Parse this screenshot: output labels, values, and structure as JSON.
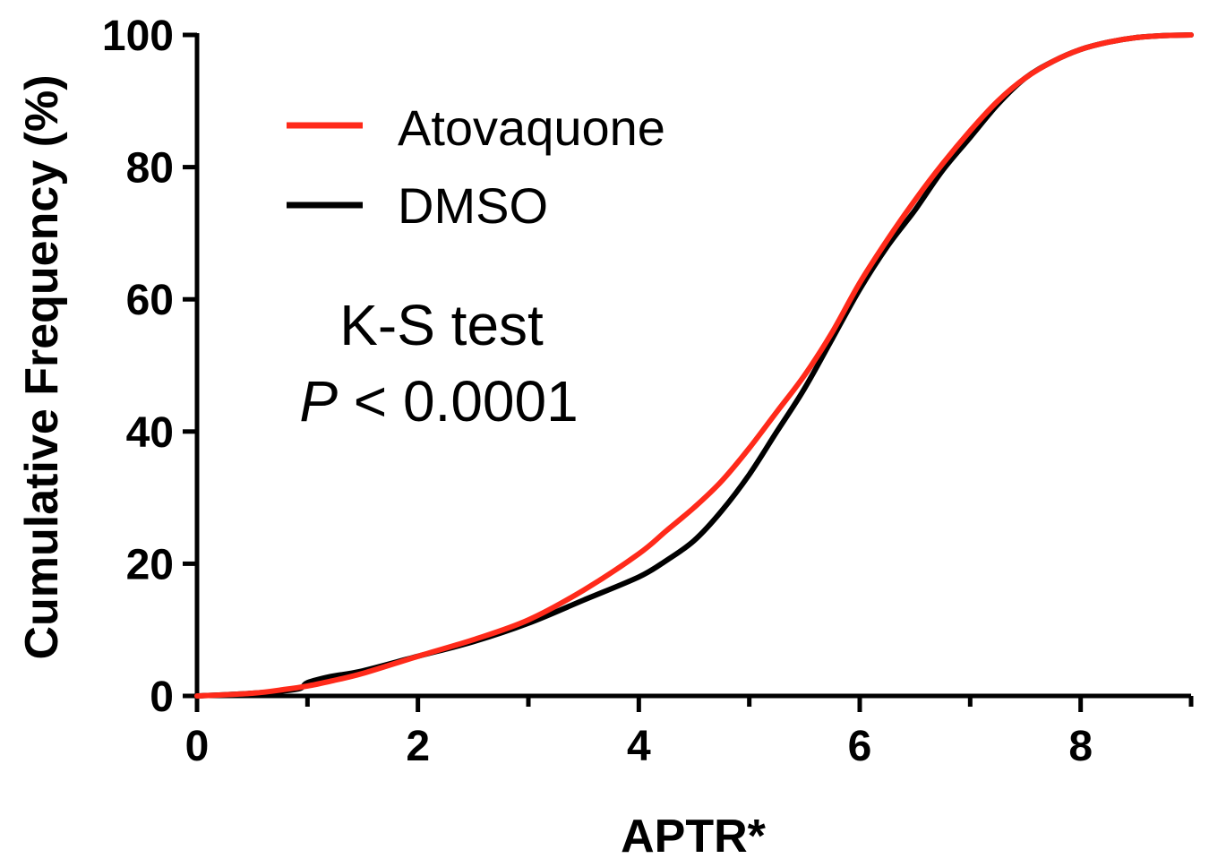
{
  "chart_data": {
    "type": "line",
    "title": "",
    "xlabel": "APTR*",
    "ylabel": "Cumulative Frequency (%)",
    "xlim": [
      0,
      9
    ],
    "ylim": [
      0,
      100
    ],
    "x_ticks": [
      "0",
      "2",
      "4",
      "6",
      "8"
    ],
    "y_ticks": [
      "0",
      "20",
      "40",
      "60",
      "80",
      "100"
    ],
    "grid": false,
    "legend_position": "top-left",
    "series": [
      {
        "name": "Atovaquone",
        "color": "#ff2a1a",
        "x": [
          0,
          0.5,
          0.8,
          1.0,
          1.2,
          1.5,
          2.0,
          2.5,
          3.0,
          3.5,
          4.0,
          4.25,
          4.5,
          4.75,
          5.0,
          5.25,
          5.5,
          5.75,
          6.0,
          6.25,
          6.5,
          6.75,
          7.0,
          7.25,
          7.5,
          7.75,
          8.0,
          8.25,
          8.5,
          8.75,
          9.0
        ],
        "y": [
          0,
          0.4,
          1.0,
          1.5,
          2.2,
          3.4,
          6.0,
          8.5,
          11.5,
          16.0,
          21.5,
          25.0,
          28.5,
          32.5,
          37.5,
          43.0,
          48.5,
          55.0,
          62.5,
          69.0,
          75.0,
          80.5,
          85.5,
          90.0,
          93.5,
          96.0,
          97.8,
          98.9,
          99.6,
          99.9,
          100
        ]
      },
      {
        "name": "DMSO",
        "color": "#000000",
        "x": [
          0,
          0.5,
          0.9,
          1.0,
          1.2,
          1.5,
          2.0,
          2.5,
          3.0,
          3.5,
          4.0,
          4.25,
          4.5,
          4.75,
          5.0,
          5.25,
          5.5,
          5.75,
          6.0,
          6.25,
          6.5,
          6.75,
          7.0,
          7.25,
          7.5,
          7.75,
          8.0,
          8.25,
          8.5,
          8.75,
          9.0
        ],
        "y": [
          0,
          0.4,
          1.0,
          2.0,
          2.9,
          3.8,
          6.0,
          8.2,
          11.0,
          14.5,
          18.0,
          20.5,
          23.5,
          28.0,
          33.5,
          40.0,
          46.5,
          54.0,
          61.5,
          68.0,
          73.5,
          79.5,
          84.5,
          89.5,
          93.5,
          96.0,
          97.8,
          98.9,
          99.6,
          99.9,
          100
        ]
      }
    ],
    "annotations": [
      {
        "text": "K-S test"
      },
      {
        "prefix": "P",
        "text": " < 0.0001"
      }
    ]
  }
}
